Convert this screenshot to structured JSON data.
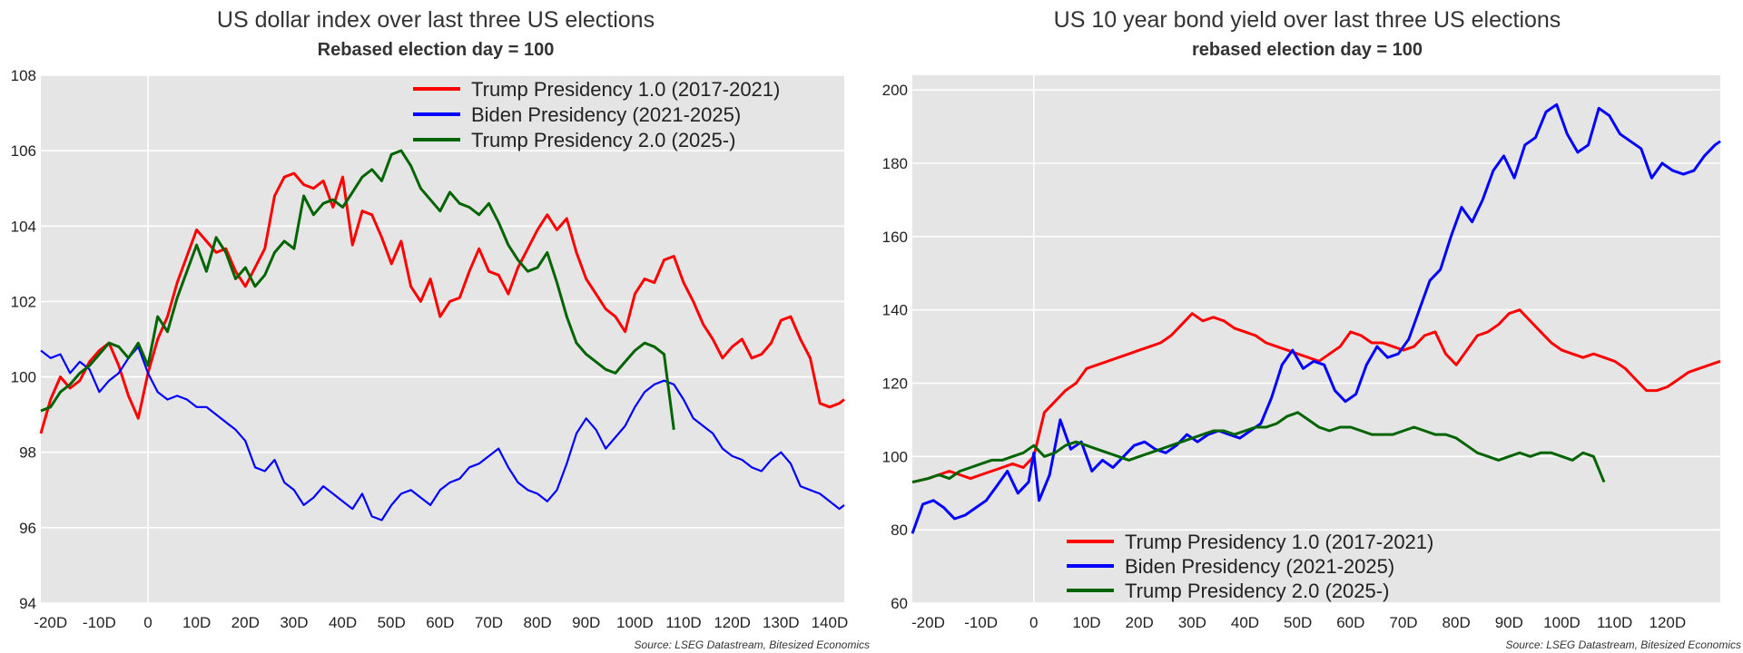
{
  "chart_data": [
    {
      "type": "line",
      "title": "US dollar index over last three US elections",
      "subtitle": "Rebased election day = 100",
      "source": "Source: LSEG Datastream, Bitesized Economics",
      "xlabel": "",
      "ylabel": "",
      "xlim": [
        -22,
        143
      ],
      "ylim": [
        94,
        108
      ],
      "x_ticks": [
        -20,
        -10,
        0,
        10,
        20,
        30,
        40,
        50,
        60,
        70,
        80,
        90,
        100,
        110,
        120,
        130,
        140
      ],
      "x_tick_labels": [
        "-20D",
        "-10D",
        "0",
        "10D",
        "20D",
        "30D",
        "40D",
        "50D",
        "60D",
        "70D",
        "80D",
        "90D",
        "100D",
        "110D",
        "120D",
        "130D",
        "140D"
      ],
      "y_ticks": [
        94,
        96,
        98,
        100,
        102,
        104,
        106,
        108
      ],
      "y_tick_labels": [
        "94",
        "96",
        "98",
        "100",
        "102",
        "104",
        "106",
        "108"
      ],
      "grid": true,
      "legend_position": "top-right",
      "series": [
        {
          "name": "Trump Presidency 1.0 (2017-2021)",
          "color": "#ff0000",
          "x": [
            -22,
            -20,
            -18,
            -16,
            -14,
            -12,
            -10,
            -8,
            -6,
            -4,
            -2,
            0,
            2,
            4,
            6,
            8,
            10,
            12,
            14,
            16,
            18,
            20,
            22,
            24,
            26,
            28,
            30,
            32,
            34,
            36,
            38,
            40,
            42,
            44,
            46,
            48,
            50,
            52,
            54,
            56,
            58,
            60,
            62,
            64,
            66,
            68,
            70,
            72,
            74,
            76,
            78,
            80,
            82,
            84,
            86,
            88,
            90,
            92,
            94,
            96,
            98,
            100,
            102,
            104,
            106,
            108,
            110,
            112,
            114,
            116,
            118,
            120,
            122,
            124,
            126,
            128,
            130,
            132,
            134,
            136,
            138,
            140,
            142,
            143
          ],
          "values": [
            98.5,
            99.4,
            100.0,
            99.7,
            99.9,
            100.4,
            100.7,
            100.9,
            100.3,
            99.5,
            98.9,
            100.1,
            101.0,
            101.6,
            102.5,
            103.2,
            103.9,
            103.6,
            103.3,
            103.4,
            102.8,
            102.4,
            102.9,
            103.4,
            104.8,
            105.3,
            105.4,
            105.1,
            105.0,
            105.2,
            104.5,
            105.3,
            103.5,
            104.4,
            104.3,
            103.7,
            103.0,
            103.6,
            102.4,
            102.0,
            102.6,
            101.6,
            102.0,
            102.1,
            102.8,
            103.4,
            102.8,
            102.7,
            102.2,
            102.9,
            103.4,
            103.9,
            104.3,
            103.9,
            104.2,
            103.3,
            102.6,
            102.2,
            101.8,
            101.6,
            101.2,
            102.2,
            102.6,
            102.5,
            103.1,
            103.2,
            102.5,
            102.0,
            101.4,
            101.0,
            100.5,
            100.8,
            101.0,
            100.5,
            100.6,
            100.9,
            101.5,
            101.6,
            101.0,
            100.5,
            99.3,
            99.2,
            99.3,
            99.4
          ]
        },
        {
          "name": "Biden Presidency (2021-2025)",
          "color": "#0000ff",
          "x": [
            -22,
            -20,
            -18,
            -16,
            -14,
            -12,
            -10,
            -8,
            -6,
            -4,
            -2,
            0,
            2,
            4,
            6,
            8,
            10,
            12,
            14,
            16,
            18,
            20,
            22,
            24,
            26,
            28,
            30,
            32,
            34,
            36,
            38,
            40,
            42,
            44,
            46,
            48,
            50,
            52,
            54,
            56,
            58,
            60,
            62,
            64,
            66,
            68,
            70,
            72,
            74,
            76,
            78,
            80,
            82,
            84,
            86,
            88,
            90,
            92,
            94,
            96,
            98,
            100,
            102,
            104,
            106,
            108,
            110,
            112,
            114,
            116,
            118,
            120,
            122,
            124,
            126,
            128,
            130,
            132,
            134,
            136,
            138,
            140,
            142,
            143
          ],
          "values": [
            100.7,
            100.5,
            100.6,
            100.1,
            100.4,
            100.2,
            99.6,
            99.9,
            100.1,
            100.5,
            100.8,
            100.1,
            99.6,
            99.4,
            99.5,
            99.4,
            99.2,
            99.2,
            99.0,
            98.8,
            98.6,
            98.3,
            97.6,
            97.5,
            97.8,
            97.2,
            97.0,
            96.6,
            96.8,
            97.1,
            96.9,
            96.7,
            96.5,
            96.9,
            96.3,
            96.2,
            96.6,
            96.9,
            97.0,
            96.8,
            96.6,
            97.0,
            97.2,
            97.3,
            97.6,
            97.7,
            97.9,
            98.1,
            97.6,
            97.2,
            97.0,
            96.9,
            96.7,
            97.0,
            97.7,
            98.5,
            98.9,
            98.6,
            98.1,
            98.4,
            98.7,
            99.2,
            99.6,
            99.8,
            99.9,
            99.8,
            99.4,
            98.9,
            98.7,
            98.5,
            98.1,
            97.9,
            97.8,
            97.6,
            97.5,
            97.8,
            98.0,
            97.7,
            97.1,
            97.0,
            96.9,
            96.7,
            96.5,
            96.6
          ]
        },
        {
          "name": "Trump Presidency 2.0 (2025-)",
          "color": "#006400",
          "x": [
            -22,
            -20,
            -18,
            -16,
            -14,
            -12,
            -10,
            -8,
            -6,
            -4,
            -2,
            0,
            2,
            4,
            6,
            8,
            10,
            12,
            14,
            16,
            18,
            20,
            22,
            24,
            26,
            28,
            30,
            32,
            34,
            36,
            38,
            40,
            42,
            44,
            46,
            48,
            50,
            52,
            54,
            56,
            58,
            60,
            62,
            64,
            66,
            68,
            70,
            72,
            74,
            76,
            78,
            80,
            82,
            84,
            86,
            88,
            90,
            92,
            94,
            96,
            98,
            100,
            102,
            104,
            106,
            108
          ],
          "values": [
            99.1,
            99.2,
            99.6,
            99.8,
            100.1,
            100.3,
            100.6,
            100.9,
            100.8,
            100.5,
            100.9,
            100.3,
            101.6,
            101.2,
            102.1,
            102.8,
            103.5,
            102.8,
            103.7,
            103.3,
            102.6,
            102.9,
            102.4,
            102.7,
            103.3,
            103.6,
            103.4,
            104.8,
            104.3,
            104.6,
            104.7,
            104.5,
            104.9,
            105.3,
            105.5,
            105.2,
            105.9,
            106.0,
            105.6,
            105.0,
            104.7,
            104.4,
            104.9,
            104.6,
            104.5,
            104.3,
            104.6,
            104.1,
            103.5,
            103.1,
            102.8,
            102.9,
            103.3,
            102.5,
            101.6,
            100.9,
            100.6,
            100.4,
            100.2,
            100.1,
            100.4,
            100.7,
            100.9,
            100.8,
            100.6,
            98.6
          ]
        }
      ]
    },
    {
      "type": "line",
      "title": "US 10 year bond yield over last three US elections",
      "subtitle": "rebased election day = 100",
      "source": "Source: LSEG Datastream, Bitesized Economics",
      "xlabel": "",
      "ylabel": "",
      "xlim": [
        -23,
        130
      ],
      "ylim": [
        60,
        204
      ],
      "x_ticks": [
        -20,
        -10,
        0,
        10,
        20,
        30,
        40,
        50,
        60,
        70,
        80,
        90,
        100,
        110,
        120
      ],
      "x_tick_labels": [
        "-20D",
        "-10D",
        "0",
        "10D",
        "20D",
        "30D",
        "40D",
        "50D",
        "60D",
        "70D",
        "80D",
        "90D",
        "100D",
        "110D",
        "120D"
      ],
      "y_ticks": [
        60,
        80,
        100,
        120,
        140,
        160,
        180,
        200
      ],
      "y_tick_labels": [
        "60",
        "80",
        "100",
        "120",
        "140",
        "160",
        "180",
        "200"
      ],
      "grid": true,
      "legend_position": "bottom-center",
      "series": [
        {
          "name": "Trump Presidency 1.0 (2017-2021)",
          "color": "#ff0000",
          "x": [
            -23,
            -20,
            -18,
            -16,
            -14,
            -12,
            -10,
            -8,
            -6,
            -4,
            -2,
            0,
            2,
            4,
            6,
            8,
            10,
            12,
            14,
            16,
            18,
            20,
            22,
            24,
            26,
            28,
            30,
            32,
            34,
            36,
            38,
            40,
            42,
            44,
            46,
            48,
            50,
            52,
            54,
            56,
            58,
            60,
            62,
            64,
            66,
            68,
            70,
            72,
            74,
            76,
            78,
            80,
            82,
            84,
            86,
            88,
            90,
            92,
            94,
            96,
            98,
            100,
            102,
            104,
            106,
            108,
            110,
            112,
            114,
            116,
            118,
            120,
            122,
            124,
            126,
            128,
            130
          ],
          "values": [
            93,
            94,
            95,
            96,
            95,
            94,
            95,
            96,
            97,
            98,
            97,
            100,
            112,
            115,
            118,
            120,
            124,
            125,
            126,
            127,
            128,
            129,
            130,
            131,
            133,
            136,
            139,
            137,
            138,
            137,
            135,
            134,
            133,
            131,
            130,
            129,
            128,
            127,
            126,
            128,
            130,
            134,
            133,
            131,
            131,
            130,
            129,
            130,
            133,
            134,
            128,
            125,
            129,
            133,
            134,
            136,
            139,
            140,
            137,
            134,
            131,
            129,
            128,
            127,
            128,
            127,
            126,
            124,
            121,
            118,
            118,
            119,
            121,
            123,
            124,
            125,
            126
          ]
        },
        {
          "name": "Biden Presidency (2021-2025)",
          "color": "#0000ff",
          "x": [
            -23,
            -21,
            -19,
            -17,
            -15,
            -13,
            -11,
            -9,
            -7,
            -5,
            -3,
            -1,
            0,
            1,
            3,
            5,
            7,
            9,
            11,
            13,
            15,
            17,
            19,
            21,
            23,
            25,
            27,
            29,
            31,
            33,
            35,
            37,
            39,
            41,
            43,
            45,
            47,
            49,
            51,
            53,
            55,
            57,
            59,
            61,
            63,
            65,
            67,
            69,
            71,
            73,
            75,
            77,
            79,
            81,
            83,
            85,
            87,
            89,
            91,
            93,
            95,
            97,
            99,
            101,
            103,
            105,
            107,
            109,
            111,
            113,
            115,
            117,
            119,
            121,
            123,
            125,
            127,
            129,
            130
          ],
          "values": [
            79,
            87,
            88,
            86,
            83,
            84,
            86,
            88,
            92,
            96,
            90,
            93,
            101,
            88,
            95,
            110,
            102,
            104,
            96,
            99,
            97,
            100,
            103,
            104,
            102,
            101,
            103,
            106,
            104,
            106,
            107,
            106,
            105,
            107,
            109,
            116,
            125,
            129,
            124,
            126,
            125,
            118,
            115,
            117,
            125,
            130,
            127,
            128,
            132,
            140,
            148,
            151,
            160,
            168,
            164,
            170,
            178,
            182,
            176,
            185,
            187,
            194,
            196,
            188,
            183,
            185,
            195,
            193,
            188,
            186,
            184,
            176,
            180,
            178,
            177,
            178,
            182,
            185,
            186
          ]
        },
        {
          "name": "Trump Presidency 2.0 (2025-)",
          "color": "#006400",
          "x": [
            -23,
            -20,
            -18,
            -16,
            -14,
            -12,
            -10,
            -8,
            -6,
            -4,
            -2,
            0,
            2,
            4,
            6,
            8,
            10,
            12,
            14,
            16,
            18,
            20,
            22,
            24,
            26,
            28,
            30,
            32,
            34,
            36,
            38,
            40,
            42,
            44,
            46,
            48,
            50,
            52,
            54,
            56,
            58,
            60,
            62,
            64,
            66,
            68,
            70,
            72,
            74,
            76,
            78,
            80,
            82,
            84,
            86,
            88,
            90,
            92,
            94,
            96,
            98,
            100,
            102,
            104,
            106,
            108
          ],
          "values": [
            93,
            94,
            95,
            94,
            96,
            97,
            98,
            99,
            99,
            100,
            101,
            103,
            100,
            101,
            103,
            104,
            103,
            102,
            101,
            100,
            99,
            100,
            101,
            102,
            103,
            104,
            105,
            106,
            107,
            107,
            106,
            107,
            108,
            108,
            109,
            111,
            112,
            110,
            108,
            107,
            108,
            108,
            107,
            106,
            106,
            106,
            107,
            108,
            107,
            106,
            106,
            105,
            103,
            101,
            100,
            99,
            100,
            101,
            100,
            101,
            101,
            100,
            99,
            101,
            100,
            93
          ]
        }
      ]
    }
  ]
}
